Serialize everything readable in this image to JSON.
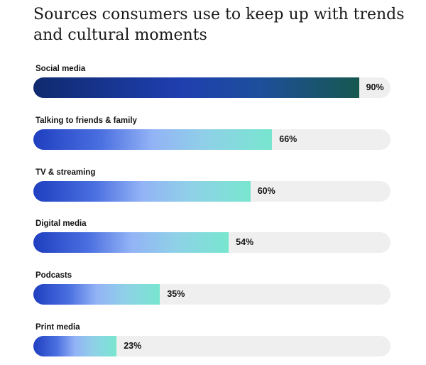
{
  "chart_data": {
    "type": "bar",
    "orientation": "horizontal",
    "title": "Sources consumers use to keep up with trends and cultural moments",
    "categories": [
      "Social media",
      "Talking to friends & family",
      "TV & streaming",
      "Digital media",
      "Podcasts",
      "Print media"
    ],
    "values": [
      90,
      66,
      60,
      54,
      35,
      23
    ],
    "value_labels": [
      "90%",
      "66%",
      "60%",
      "54%",
      "35%",
      "23%"
    ],
    "unit": "%",
    "xlim": [
      0,
      100
    ],
    "grid": false,
    "legend": "none",
    "colors": {
      "top_bar_start": "#0f2a6e",
      "top_bar_end": "#16584f",
      "bar_start": "#1f3fc0",
      "bar_mid": "#93b3f6",
      "bar_end": "#78e6cf",
      "track": "#efefef"
    }
  }
}
